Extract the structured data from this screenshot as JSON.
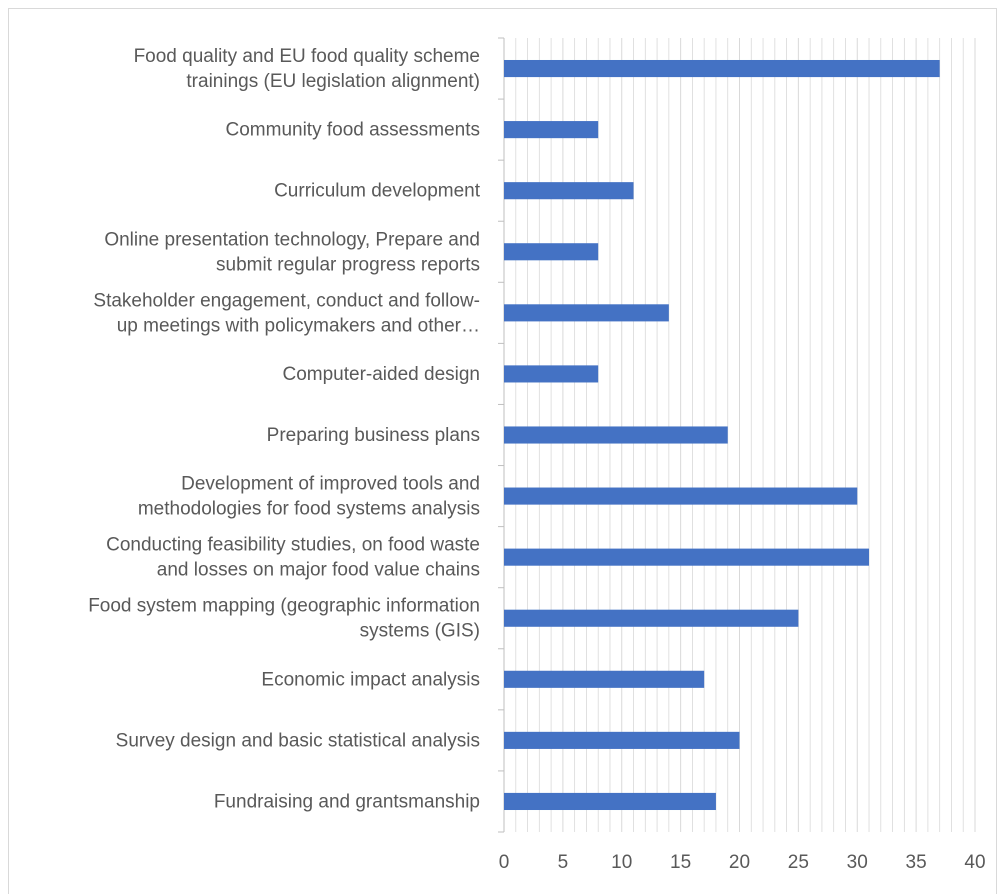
{
  "chart_data": {
    "type": "bar",
    "orientation": "horizontal",
    "title": "",
    "xlabel": "",
    "ylabel": "",
    "xlim": [
      0,
      40
    ],
    "x_ticks": [
      "0",
      "5",
      "10",
      "15",
      "20",
      "25",
      "30",
      "35",
      "40"
    ],
    "grid": "vertical major and minor",
    "legend": "none",
    "bar_color": "#4472c4",
    "grid_color": "#d9d9d9",
    "label_color": "#595959",
    "categories": [
      [
        "Food quality and EU food quality scheme",
        "trainings (EU legislation alignment)"
      ],
      [
        "Community food assessments"
      ],
      [
        "Curriculum development"
      ],
      [
        "Online presentation technology, Prepare and",
        "submit regular progress reports"
      ],
      [
        "Stakeholder engagement, conduct and follow-",
        "up meetings with policymakers and other…"
      ],
      [
        "Computer-aided design"
      ],
      [
        "Preparing business plans"
      ],
      [
        "Development of improved tools and",
        "methodologies for food systems analysis"
      ],
      [
        "Conducting feasibility studies, on food waste",
        "and losses on major food value chains"
      ],
      [
        "Food system mapping (geographic information",
        "systems (GIS)"
      ],
      [
        "Economic impact analysis"
      ],
      [
        "Survey design and basic statistical analysis"
      ],
      [
        "Fundraising and grantsmanship"
      ]
    ],
    "values": [
      37,
      8,
      11,
      8,
      14,
      8,
      19,
      30,
      31,
      25,
      17,
      20,
      18
    ]
  }
}
